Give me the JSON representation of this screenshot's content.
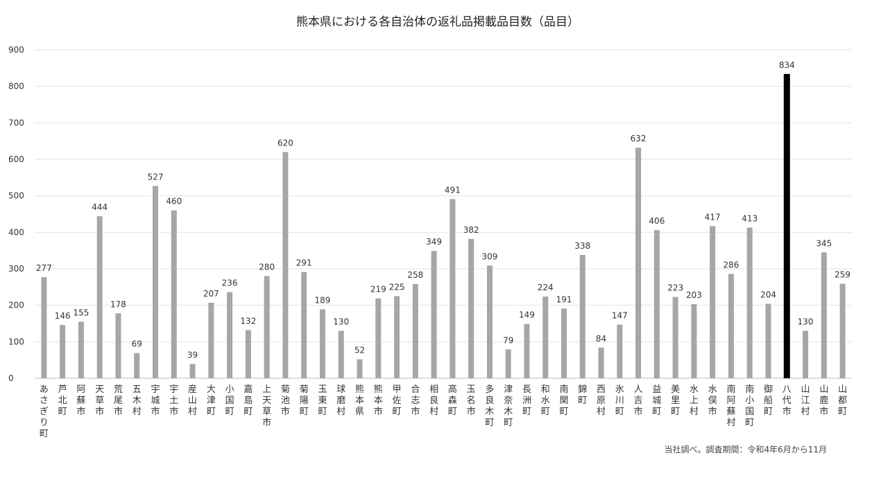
{
  "colors": {
    "bar": "#a6a6a6",
    "highlight": "#000000",
    "grid": "#e2e2e2"
  },
  "note": "当社調べ。調査期間：令和4年6月から11月",
  "chart_data": {
    "type": "bar",
    "title": "熊本県における各自治体の返礼品掲載品目数（品目）",
    "xlabel": "",
    "ylabel": "",
    "ylim": [
      0,
      900
    ],
    "yticks": [
      0,
      100,
      200,
      300,
      400,
      500,
      600,
      700,
      800,
      900
    ],
    "grid": true,
    "highlight": "八代市",
    "categories": [
      "あさぎり町",
      "芦北町",
      "阿蘇市",
      "天草市",
      "荒尾市",
      "五木村",
      "宇城市",
      "宇土市",
      "産山村",
      "大津町",
      "小国町",
      "嘉島町",
      "上天草市",
      "菊池市",
      "菊陽町",
      "玉東町",
      "球磨村",
      "熊本県",
      "熊本市",
      "甲佐町",
      "合志市",
      "相良村",
      "高森町",
      "玉名市",
      "多良木町",
      "津奈木町",
      "長洲町",
      "和水町",
      "南関町",
      "錦町",
      "西原村",
      "氷川町",
      "人吉市",
      "益城町",
      "美里町",
      "水上村",
      "水俣市",
      "南阿蘇村",
      "南小国町",
      "御船町",
      "八代市",
      "山江村",
      "山鹿市",
      "山都町"
    ],
    "values": [
      277,
      146,
      155,
      444,
      178,
      69,
      527,
      460,
      39,
      207,
      236,
      132,
      280,
      620,
      291,
      189,
      130,
      52,
      219,
      225,
      258,
      349,
      491,
      382,
      309,
      79,
      149,
      224,
      191,
      338,
      84,
      147,
      632,
      406,
      223,
      203,
      417,
      286,
      413,
      204,
      834,
      130,
      345,
      259
    ]
  }
}
